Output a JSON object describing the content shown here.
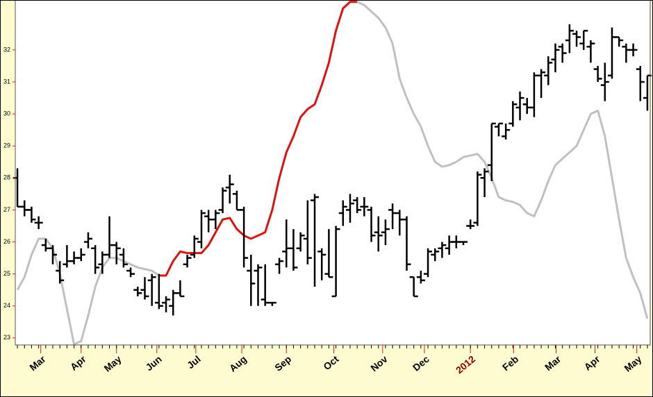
{
  "chart_data": {
    "type": "ohlc",
    "color": "#000000",
    "x": [
      0,
      1,
      2,
      3,
      4,
      5,
      6,
      7,
      8,
      9,
      10,
      11,
      12,
      13,
      14,
      15,
      16,
      17,
      18,
      19,
      20,
      21,
      22,
      23,
      24,
      25,
      26,
      27,
      28,
      29,
      30,
      31,
      32,
      33,
      34,
      35,
      36,
      37,
      38,
      39,
      40,
      41,
      42,
      43,
      44,
      45,
      46,
      47,
      48,
      49,
      50,
      51,
      52,
      53,
      54,
      55,
      56,
      57,
      58,
      59,
      60,
      61,
      62,
      63,
      64,
      65,
      66,
      67,
      68,
      69,
      70,
      71,
      72,
      73,
      74,
      75,
      76,
      77,
      78,
      79,
      80,
      81,
      82,
      83,
      84,
      85,
      86,
      87,
      88,
      89
    ],
    "open": [
      28,
      27.1,
      27,
      26.6,
      25.9,
      25.8,
      25.1,
      25.3,
      25.4,
      25.5,
      26,
      25.8,
      25.3,
      25.6,
      25.9,
      25.6,
      25.1,
      24.5,
      24.5,
      24.8,
      24.1,
      24.1,
      24,
      24.4,
      25.3,
      25.6,
      26,
      26.8,
      26.7,
      27,
      27.7,
      27.5,
      27,
      25.1,
      25.1,
      24.2,
      24.1,
      25.3,
      25.7,
      25.8,
      25.8,
      26.1,
      27.3,
      25.7,
      25,
      24.3,
      26.9,
      27,
      27.3,
      27.1,
      27,
      26.3,
      26.3,
      27,
      26.9,
      26.7,
      24.9,
      24.9,
      25,
      25.6,
      25.8,
      25.8,
      26,
      26,
      26.5,
      26.6,
      28,
      28.4,
      29.6,
      29.3,
      29.7,
      30.2,
      30.3,
      30.2,
      31.2,
      31.2,
      31.7,
      32.1,
      32.3,
      32.5,
      32.2,
      32.1,
      31.4,
      30.9,
      31.2,
      32.4,
      32.1,
      32,
      31.4,
      30.5
    ],
    "high": [
      28.3,
      27.3,
      27.1,
      26.8,
      26.1,
      25.9,
      25.4,
      25.9,
      25.7,
      25.8,
      26.3,
      25.9,
      25.7,
      26.8,
      26,
      25.8,
      25.2,
      24.6,
      24.9,
      25,
      25,
      24.3,
      24.5,
      24.8,
      25.6,
      26.2,
      27,
      27,
      27,
      27.7,
      28.1,
      27.6,
      27.1,
      25.6,
      25.3,
      25.3,
      24.1,
      25.5,
      26.7,
      26.4,
      26.3,
      27.3,
      27.5,
      25.8,
      26.4,
      26.5,
      27.3,
      27.5,
      27.4,
      27.4,
      27.1,
      26.8,
      26.7,
      27.2,
      27,
      26.8,
      24.9,
      25.1,
      25.8,
      25.8,
      26,
      26.2,
      26.2,
      26,
      26.7,
      28.2,
      28.3,
      29.7,
      29.7,
      29.7,
      30.4,
      30.7,
      30.5,
      31.3,
      31.4,
      31.8,
      32.2,
      32.2,
      32.8,
      32.6,
      32.6,
      32.3,
      31.5,
      31.6,
      32.7,
      32.4,
      32.2,
      32.2,
      31.5,
      31.2
    ],
    "low": [
      27.1,
      26.8,
      26.6,
      26.4,
      25.7,
      25.3,
      24.7,
      25.2,
      25.3,
      25.4,
      25.8,
      25,
      25,
      25.5,
      25.3,
      25.2,
      24.9,
      24.3,
      24.2,
      24,
      23.9,
      23.8,
      23.7,
      24.3,
      25.2,
      25.5,
      25.8,
      26.3,
      26.4,
      26.9,
      27.2,
      27,
      25.2,
      24,
      24,
      24,
      24,
      25,
      25.2,
      25.1,
      25.7,
      25.3,
      24.6,
      24.8,
      24.9,
      24.3,
      26.5,
      26.6,
      26.9,
      26.8,
      26,
      25.7,
      25.9,
      26.4,
      26.2,
      25.1,
      24.3,
      24.7,
      24.9,
      25.4,
      25.5,
      25.6,
      25.8,
      25.9,
      26.4,
      26.5,
      27.4,
      27.9,
      29.3,
      29.2,
      29.6,
      29.8,
      30,
      29.9,
      30.5,
      30.9,
      31.3,
      31.6,
      31.9,
      32.1,
      32,
      31.6,
      31,
      30.4,
      31.1,
      32.1,
      31.6,
      31.8,
      30.4,
      30.1
    ],
    "close": [
      27.1,
      27,
      26.7,
      26.6,
      25.8,
      25.6,
      24.8,
      25.4,
      25.5,
      25.6,
      26.1,
      25.2,
      25.6,
      25.9,
      25.8,
      25.3,
      25,
      24.4,
      24.3,
      24.9,
      24,
      24.2,
      24.4,
      24.3,
      25.5,
      26.1,
      26.9,
      26.7,
      26.9,
      27.6,
      27.8,
      27,
      25.5,
      24.7,
      25.2,
      24.1,
      24.1,
      25.4,
      25.8,
      25.2,
      26.2,
      25.5,
      27.4,
      25.6,
      24.9,
      26.4,
      27.1,
      27.2,
      27,
      27.1,
      26.2,
      26.2,
      26.4,
      26.9,
      26.7,
      25.3,
      24.3,
      24.8,
      25.7,
      25.7,
      25.9,
      26,
      26,
      26,
      26.5,
      28.1,
      28.2,
      29.7,
      29.7,
      29.5,
      30.3,
      30.5,
      30.2,
      31.2,
      31.3,
      31.6,
      32,
      31.9,
      32.6,
      32.4,
      32.6,
      32.2,
      31.1,
      31,
      32.4,
      32.3,
      32,
      32,
      31,
      31.2
    ],
    "overlays": [
      {
        "color": "#c0c0c0",
        "values": [
          24.5,
          24.9,
          25.6,
          26.1,
          26.1,
          25.8,
          25,
          23.9,
          22.8,
          22.9,
          23.7,
          24.6,
          25.2,
          25.5,
          25.5,
          25.4,
          25.3,
          25.2,
          25.15,
          25.1,
          24.95,
          null,
          null,
          null,
          null,
          null,
          null,
          null,
          null,
          null,
          null,
          null,
          null,
          null,
          null,
          null,
          null,
          null,
          null,
          null,
          null,
          null,
          null,
          null,
          null,
          null,
          null,
          null,
          33.5,
          33.4,
          33.2,
          33,
          32.7,
          32.2,
          31.1,
          30.5,
          30,
          29.6,
          29,
          28.5,
          28.35,
          28.4,
          28.5,
          28.65,
          28.7,
          28.75,
          28.5,
          28,
          27.4,
          27.3,
          27.25,
          27.15,
          26.9,
          26.8,
          27.3,
          27.9,
          28.4,
          28.6,
          28.8,
          29,
          29.5,
          30,
          30.1,
          29.3,
          28,
          26.7,
          25.5,
          24.9,
          24.4,
          23.6
        ]
      },
      {
        "color": "#e01010",
        "values": [
          null,
          null,
          null,
          null,
          null,
          null,
          null,
          null,
          null,
          null,
          null,
          null,
          null,
          null,
          null,
          null,
          null,
          null,
          null,
          null,
          24.95,
          24.95,
          25.4,
          25.7,
          25.65,
          25.65,
          25.65,
          25.9,
          26.3,
          26.7,
          26.75,
          26.4,
          26.2,
          26.1,
          26.2,
          26.3,
          27,
          28,
          28.8,
          29.3,
          29.9,
          30.15,
          30.3,
          30.9,
          31.6,
          32.6,
          33.3,
          33.5,
          33.5,
          null,
          null,
          null,
          null,
          null,
          null,
          null,
          null,
          null,
          null,
          null,
          null,
          null,
          null,
          null,
          null,
          null,
          null,
          null,
          null,
          null,
          null,
          null,
          null,
          null,
          null,
          null,
          null,
          null,
          null,
          null,
          null,
          null,
          null,
          null,
          null,
          null,
          null,
          null,
          null,
          null
        ]
      }
    ],
    "xlim": [
      -0.3,
      89.4
    ],
    "ylim": [
      22.78,
      33.56
    ],
    "xticks": [
      {
        "value": 3.3,
        "label": "Mar"
      },
      {
        "value": 9,
        "label": "Apr"
      },
      {
        "value": 14,
        "label": "May"
      },
      {
        "value": 19.7,
        "label": "Jun"
      },
      {
        "value": 25.2,
        "label": "Jul"
      },
      {
        "value": 31.7,
        "label": "Aug"
      },
      {
        "value": 38,
        "label": "Sep"
      },
      {
        "value": 44.7,
        "label": "Oct"
      },
      {
        "value": 51.6,
        "label": "Nov"
      },
      {
        "value": 57.5,
        "label": "Dec"
      },
      {
        "value": 64,
        "label": "2012"
      },
      {
        "value": 70.1,
        "label": "Feb"
      },
      {
        "value": 76.1,
        "label": "Mar"
      },
      {
        "value": 81.6,
        "label": "Apr"
      },
      {
        "value": 87.5,
        "label": "May"
      }
    ],
    "yticks": [
      23,
      24,
      25,
      26,
      27,
      28,
      29,
      30,
      31,
      32
    ]
  }
}
